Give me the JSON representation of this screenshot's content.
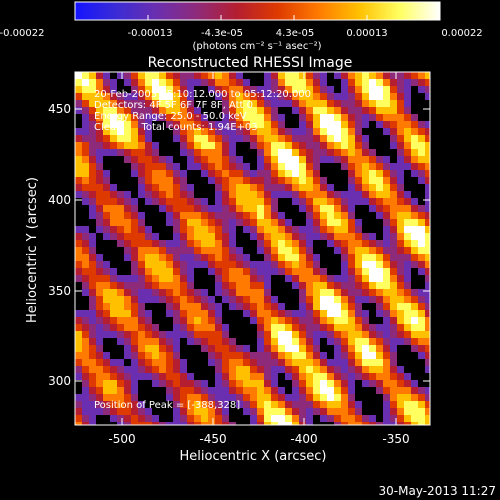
{
  "title": "Reconstructed RHESSI Image",
  "colorbar": {
    "tick_labels": [
      "-0.00022",
      "-0.00013",
      "-4.3e-05",
      "4.3e-05",
      "0.00013",
      "0.00022"
    ],
    "unit_label": "(photons cm⁻² s⁻¹ asec⁻²)",
    "colors": [
      "#1414ff",
      "#3a2bd6",
      "#6a2fb0",
      "#8e2a7a",
      "#b51e30",
      "#de3a00",
      "#ff7a00",
      "#ffc000",
      "#ffff60",
      "#ffffff"
    ]
  },
  "annotations": {
    "time": "20-Feb-2003 05:10:12.000 to 05:12:20.000",
    "detectors": "Detectors: 4F 5F 6F 7F 8F, Att 0",
    "energy": "Energy Range: 25.0 - 50.0 keV",
    "clean": "Clean      Total counts: 1.94E+03",
    "peak": "Position of Peak = [-388,328]"
  },
  "axes": {
    "xlabel": "Heliocentric X (arcsec)",
    "ylabel": "Heliocentric Y (arcsec)",
    "xlim": [
      -527,
      -333
    ],
    "ylim": [
      276,
      472
    ],
    "xticks": [
      "-500",
      "-450",
      "-400",
      "-350"
    ],
    "yticks": [
      "300",
      "350",
      "400",
      "450"
    ]
  },
  "footer": {
    "date": "30-May-2013 11:27"
  }
}
